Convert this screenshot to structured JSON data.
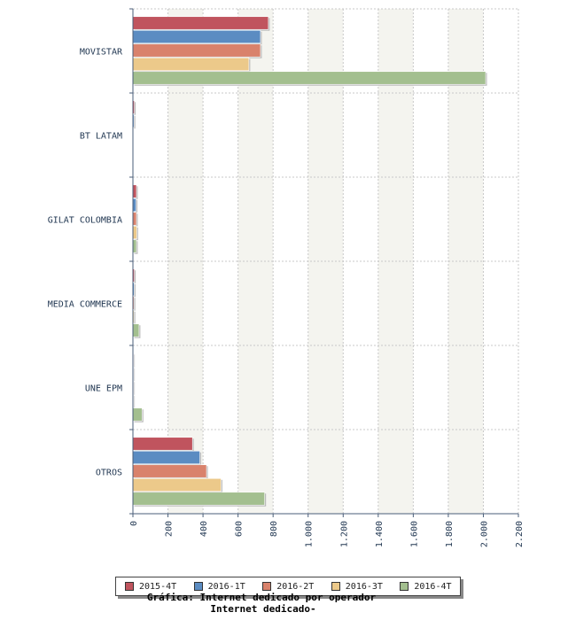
{
  "chart_data": {
    "type": "bar",
    "orientation": "horizontal",
    "categories": [
      "MOVISTAR",
      "BT LATAM",
      "GILAT COLOMBIA",
      "MEDIA COMMERCE",
      "UNE EPM",
      "OTROS"
    ],
    "series": [
      {
        "name": "2015-4T",
        "color": "#c0545e",
        "values": [
          773,
          8,
          20,
          8,
          3,
          340
        ]
      },
      {
        "name": "2016-1T",
        "color": "#5b8cc2",
        "values": [
          728,
          6,
          18,
          7,
          3,
          382
        ]
      },
      {
        "name": "2016-2T",
        "color": "#d9826c",
        "values": [
          728,
          0,
          20,
          6,
          3,
          420
        ]
      },
      {
        "name": "2016-3T",
        "color": "#ecc98a",
        "values": [
          662,
          0,
          22,
          6,
          3,
          503
        ]
      },
      {
        "name": "2016-4T",
        "color": "#a3bf8f",
        "values": [
          2013,
          0,
          20,
          35,
          52,
          752
        ]
      }
    ],
    "xlim": [
      0,
      2200
    ],
    "ticks": [
      "0",
      "200",
      "400",
      "600",
      "800",
      "1.000",
      "1.200",
      "1.400",
      "1.600",
      "1.800",
      "2.000",
      "2.200"
    ],
    "grid": true,
    "legend_position": "bottom"
  },
  "caption": {
    "line1": "Gráfica: Internet dedicado por operador",
    "line2": "Internet dedicado-"
  }
}
